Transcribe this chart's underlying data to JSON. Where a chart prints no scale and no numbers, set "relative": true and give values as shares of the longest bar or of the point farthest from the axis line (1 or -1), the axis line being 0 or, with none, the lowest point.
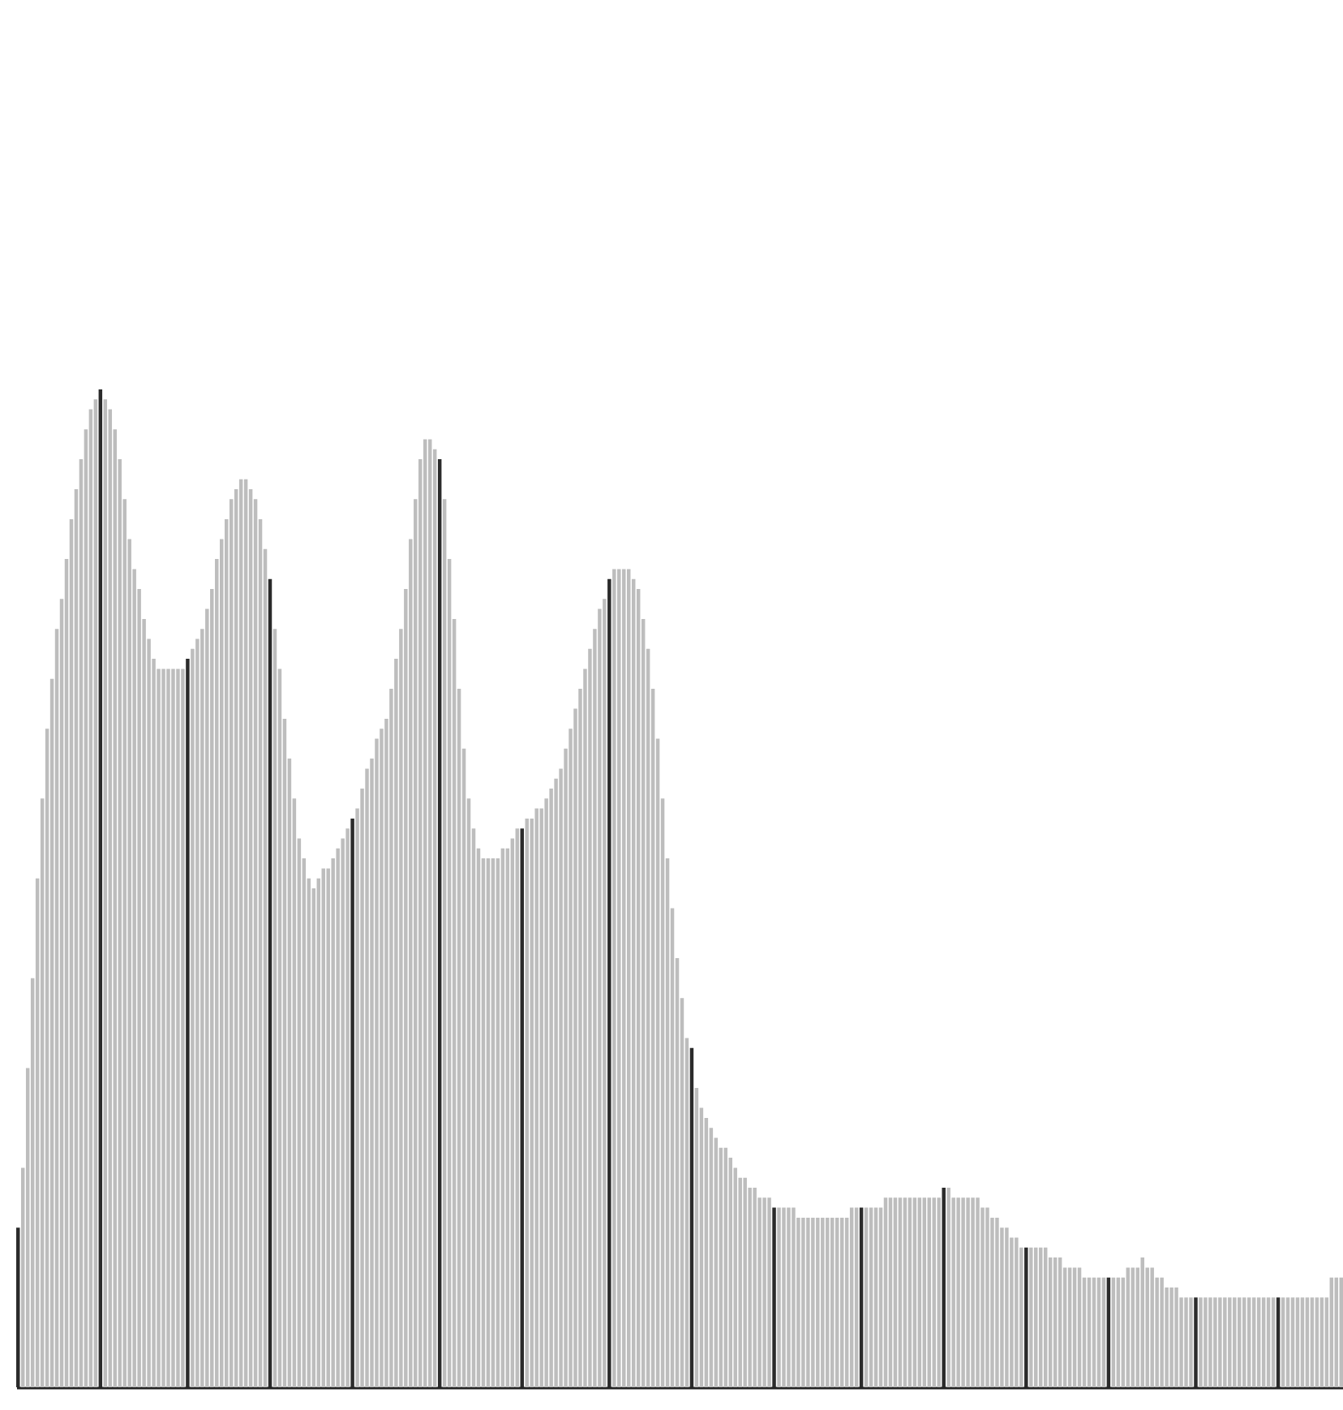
{
  "chart_data": {
    "type": "bar",
    "relative": true,
    "categories": [
      null,
      null,
      null,
      null,
      null,
      null,
      null,
      null,
      null,
      null,
      null,
      null,
      null,
      null,
      null,
      null,
      null,
      null,
      null,
      null,
      null,
      null,
      null,
      null,
      null,
      null,
      null,
      null,
      null,
      null,
      null,
      null,
      null,
      null,
      null,
      null,
      null,
      null,
      null,
      null,
      null,
      null,
      null,
      null,
      null,
      null,
      null,
      null,
      null,
      null,
      null,
      null,
      null,
      null,
      null,
      null,
      null,
      null,
      null,
      null,
      null,
      null,
      null,
      null,
      null,
      null,
      null,
      null,
      null,
      null,
      null,
      null,
      null,
      null,
      null,
      null,
      null,
      null,
      null,
      null,
      null,
      null,
      null,
      null,
      null,
      null,
      null,
      null,
      null,
      null,
      null,
      null,
      null,
      null,
      null,
      null,
      null,
      null,
      null,
      null,
      null,
      null,
      null,
      null,
      null,
      null,
      null,
      null,
      null,
      null,
      null,
      null,
      null,
      null,
      null,
      null,
      null,
      null,
      null,
      null,
      null,
      null,
      null,
      null,
      null,
      null,
      null,
      null,
      null,
      null,
      null,
      null,
      null,
      null,
      null,
      null,
      null,
      null,
      null,
      null,
      null,
      null,
      null,
      null,
      null,
      null,
      null,
      null,
      null,
      null,
      null,
      null,
      null,
      null,
      null,
      null,
      null,
      null,
      null,
      null,
      null,
      null,
      null,
      null,
      null,
      null,
      null,
      null,
      null,
      null,
      null,
      null,
      null,
      null,
      null,
      null,
      null,
      null,
      null,
      null,
      null,
      null,
      null,
      null,
      null,
      null,
      null,
      null,
      null,
      null,
      null,
      null,
      null,
      null,
      null,
      null,
      null,
      null,
      null,
      null,
      null,
      null,
      null,
      null,
      null,
      null,
      null,
      null,
      null,
      null,
      null,
      null,
      null,
      null,
      null,
      null,
      null,
      null,
      null,
      null,
      null,
      null,
      null,
      null,
      null,
      null,
      null,
      null,
      null,
      null,
      null,
      null,
      null,
      null,
      null,
      null,
      null,
      null,
      null,
      null,
      null,
      null,
      null,
      null,
      null,
      null,
      null,
      null,
      null,
      null,
      null,
      null,
      null,
      null,
      null,
      null,
      null,
      null,
      null,
      null,
      null,
      null,
      null,
      null,
      null,
      null,
      null,
      null,
      null,
      null,
      null,
      null,
      null,
      null
    ],
    "values": [
      0.16,
      0.22,
      0.32,
      0.41,
      0.51,
      0.59,
      0.66,
      0.71,
      0.76,
      0.79,
      0.83,
      0.87,
      0.9,
      0.93,
      0.96,
      0.98,
      0.99,
      1.0,
      0.99,
      0.98,
      0.96,
      0.93,
      0.89,
      0.85,
      0.82,
      0.8,
      0.77,
      0.75,
      0.73,
      0.72,
      0.72,
      0.72,
      0.72,
      0.72,
      0.72,
      0.73,
      0.74,
      0.75,
      0.76,
      0.78,
      0.8,
      0.83,
      0.85,
      0.87,
      0.89,
      0.9,
      0.91,
      0.91,
      0.9,
      0.89,
      0.87,
      0.84,
      0.81,
      0.76,
      0.72,
      0.67,
      0.63,
      0.59,
      0.55,
      0.53,
      0.51,
      0.5,
      0.51,
      0.52,
      0.52,
      0.53,
      0.54,
      0.55,
      0.56,
      0.57,
      0.58,
      0.6,
      0.62,
      0.63,
      0.65,
      0.66,
      0.67,
      0.7,
      0.73,
      0.76,
      0.8,
      0.85,
      0.89,
      0.93,
      0.95,
      0.95,
      0.94,
      0.93,
      0.89,
      0.83,
      0.77,
      0.7,
      0.64,
      0.59,
      0.56,
      0.54,
      0.53,
      0.53,
      0.53,
      0.53,
      0.54,
      0.54,
      0.55,
      0.56,
      0.56,
      0.57,
      0.57,
      0.58,
      0.58,
      0.59,
      0.6,
      0.61,
      0.62,
      0.64,
      0.66,
      0.68,
      0.7,
      0.72,
      0.74,
      0.76,
      0.78,
      0.79,
      0.81,
      0.82,
      0.82,
      0.82,
      0.82,
      0.81,
      0.8,
      0.77,
      0.74,
      0.7,
      0.65,
      0.59,
      0.53,
      0.48,
      0.43,
      0.39,
      0.35,
      0.34,
      0.3,
      0.28,
      0.27,
      0.26,
      0.25,
      0.24,
      0.24,
      0.23,
      0.22,
      0.21,
      0.21,
      0.2,
      0.2,
      0.19,
      0.19,
      0.19,
      0.18,
      0.18,
      0.18,
      0.18,
      0.18,
      0.17,
      0.17,
      0.17,
      0.17,
      0.17,
      0.17,
      0.17,
      0.17,
      0.17,
      0.17,
      0.17,
      0.18,
      0.18,
      0.18,
      0.18,
      0.18,
      0.18,
      0.18,
      0.19,
      0.19,
      0.19,
      0.19,
      0.19,
      0.19,
      0.19,
      0.19,
      0.19,
      0.19,
      0.19,
      0.19,
      0.2,
      0.2,
      0.19,
      0.19,
      0.19,
      0.19,
      0.19,
      0.19,
      0.18,
      0.18,
      0.17,
      0.17,
      0.16,
      0.16,
      0.15,
      0.15,
      0.14,
      0.14,
      0.14,
      0.14,
      0.14,
      0.14,
      0.13,
      0.13,
      0.13,
      0.12,
      0.12,
      0.12,
      0.12,
      0.11,
      0.11,
      0.11,
      0.11,
      0.11,
      0.11,
      0.11,
      0.11,
      0.11,
      0.12,
      0.12,
      0.12,
      0.13,
      0.12,
      0.12,
      0.11,
      0.11,
      0.1,
      0.1,
      0.1,
      0.09,
      0.09,
      0.09,
      0.09,
      0.09,
      0.09,
      0.09,
      0.09,
      0.09,
      0.09,
      0.09,
      0.09,
      0.09,
      0.09,
      0.09,
      0.09,
      0.09,
      0.09,
      0.09,
      0.09,
      0.09,
      0.09,
      0.09,
      0.09,
      0.09,
      0.09,
      0.09,
      0.09,
      0.09,
      0.09,
      0.09,
      0.11,
      0.11,
      0.11
    ],
    "colors": [
      "#2b2b2b",
      "#bdbdbd",
      "#bdbdbd",
      "#bdbdbd",
      "#bdbdbd",
      "#bdbdbd",
      "#bdbdbd",
      "#bdbdbd",
      "#bdbdbd",
      "#bdbdbd",
      "#bdbdbd",
      "#bdbdbd",
      "#bdbdbd",
      "#bdbdbd",
      "#bdbdbd",
      "#bdbdbd",
      "#bdbdbd",
      "#2b2b2b",
      "#bdbdbd",
      "#bdbdbd",
      "#bdbdbd",
      "#bdbdbd",
      "#bdbdbd",
      "#bdbdbd",
      "#bdbdbd",
      "#bdbdbd",
      "#bdbdbd",
      "#bdbdbd",
      "#bdbdbd",
      "#bdbdbd",
      "#bdbdbd",
      "#bdbdbd",
      "#bdbdbd",
      "#bdbdbd",
      "#bdbdbd",
      "#2b2b2b",
      "#bdbdbd",
      "#bdbdbd",
      "#bdbdbd",
      "#bdbdbd",
      "#bdbdbd",
      "#bdbdbd",
      "#bdbdbd",
      "#bdbdbd",
      "#bdbdbd",
      "#bdbdbd",
      "#bdbdbd",
      "#bdbdbd",
      "#bdbdbd",
      "#bdbdbd",
      "#bdbdbd",
      "#bdbdbd",
      "#2b2b2b",
      "#bdbdbd",
      "#bdbdbd",
      "#bdbdbd",
      "#bdbdbd",
      "#bdbdbd",
      "#bdbdbd",
      "#bdbdbd",
      "#bdbdbd",
      "#bdbdbd",
      "#bdbdbd",
      "#bdbdbd",
      "#bdbdbd",
      "#bdbdbd",
      "#bdbdbd",
      "#bdbdbd",
      "#bdbdbd",
      "#2b2b2b",
      "#bdbdbd",
      "#bdbdbd",
      "#bdbdbd",
      "#bdbdbd",
      "#bdbdbd",
      "#bdbdbd",
      "#bdbdbd",
      "#bdbdbd",
      "#bdbdbd",
      "#bdbdbd",
      "#bdbdbd",
      "#bdbdbd",
      "#bdbdbd",
      "#bdbdbd",
      "#bdbdbd",
      "#bdbdbd",
      "#bdbdbd",
      "#2b2b2b",
      "#bdbdbd",
      "#bdbdbd",
      "#bdbdbd",
      "#bdbdbd",
      "#bdbdbd",
      "#bdbdbd",
      "#bdbdbd",
      "#bdbdbd",
      "#bdbdbd",
      "#bdbdbd",
      "#bdbdbd",
      "#bdbdbd",
      "#bdbdbd",
      "#bdbdbd",
      "#bdbdbd",
      "#bdbdbd",
      "#2b2b2b",
      "#bdbdbd",
      "#bdbdbd",
      "#bdbdbd",
      "#bdbdbd",
      "#bdbdbd",
      "#bdbdbd",
      "#bdbdbd",
      "#bdbdbd",
      "#bdbdbd",
      "#bdbdbd",
      "#bdbdbd",
      "#bdbdbd",
      "#bdbdbd",
      "#bdbdbd",
      "#bdbdbd",
      "#bdbdbd",
      "#bdbdbd",
      "#2b2b2b",
      "#bdbdbd",
      "#bdbdbd",
      "#bdbdbd",
      "#bdbdbd",
      "#bdbdbd",
      "#bdbdbd",
      "#bdbdbd",
      "#bdbdbd",
      "#bdbdbd",
      "#bdbdbd",
      "#bdbdbd",
      "#bdbdbd",
      "#bdbdbd",
      "#bdbdbd",
      "#bdbdbd",
      "#bdbdbd",
      "#2b2b2b",
      "#bdbdbd",
      "#bdbdbd",
      "#bdbdbd",
      "#bdbdbd",
      "#bdbdbd",
      "#bdbdbd",
      "#bdbdbd",
      "#bdbdbd",
      "#bdbdbd",
      "#bdbdbd",
      "#bdbdbd",
      "#bdbdbd",
      "#bdbdbd",
      "#bdbdbd",
      "#bdbdbd",
      "#bdbdbd",
      "#2b2b2b",
      "#bdbdbd",
      "#bdbdbd",
      "#bdbdbd",
      "#bdbdbd",
      "#bdbdbd",
      "#bdbdbd",
      "#bdbdbd",
      "#bdbdbd",
      "#bdbdbd",
      "#bdbdbd",
      "#bdbdbd",
      "#bdbdbd",
      "#bdbdbd",
      "#bdbdbd",
      "#bdbdbd",
      "#bdbdbd",
      "#bdbdbd",
      "#2b2b2b",
      "#bdbdbd",
      "#bdbdbd",
      "#bdbdbd",
      "#bdbdbd",
      "#bdbdbd",
      "#bdbdbd",
      "#bdbdbd",
      "#bdbdbd",
      "#bdbdbd",
      "#bdbdbd",
      "#bdbdbd",
      "#bdbdbd",
      "#bdbdbd",
      "#bdbdbd",
      "#bdbdbd",
      "#bdbdbd",
      "#2b2b2b",
      "#bdbdbd",
      "#bdbdbd",
      "#bdbdbd",
      "#bdbdbd",
      "#bdbdbd",
      "#bdbdbd",
      "#bdbdbd",
      "#bdbdbd",
      "#bdbdbd",
      "#bdbdbd",
      "#bdbdbd",
      "#bdbdbd",
      "#bdbdbd",
      "#bdbdbd",
      "#bdbdbd",
      "#bdbdbd",
      "#2b2b2b",
      "#bdbdbd",
      "#bdbdbd",
      "#bdbdbd",
      "#bdbdbd",
      "#bdbdbd",
      "#bdbdbd",
      "#bdbdbd",
      "#bdbdbd",
      "#bdbdbd",
      "#bdbdbd",
      "#bdbdbd",
      "#bdbdbd",
      "#bdbdbd",
      "#bdbdbd",
      "#bdbdbd",
      "#bdbdbd",
      "#2b2b2b",
      "#bdbdbd",
      "#bdbdbd",
      "#bdbdbd",
      "#bdbdbd",
      "#bdbdbd",
      "#bdbdbd",
      "#bdbdbd",
      "#bdbdbd",
      "#bdbdbd",
      "#bdbdbd",
      "#bdbdbd",
      "#bdbdbd",
      "#bdbdbd",
      "#bdbdbd",
      "#bdbdbd",
      "#bdbdbd",
      "#bdbdbd",
      "#2b2b2b",
      "#bdbdbd",
      "#bdbdbd",
      "#bdbdbd",
      "#bdbdbd",
      "#bdbdbd",
      "#bdbdbd",
      "#bdbdbd",
      "#bdbdbd",
      "#bdbdbd",
      "#bdbdbd",
      "#bdbdbd",
      "#bdbdbd",
      "#bdbdbd",
      "#bdbdbd",
      "#bdbdbd",
      "#bdbdbd",
      "#2b2b2b",
      "#bdbdbd",
      "#bdbdbd",
      "#bdbdbd",
      "#bdbdbd",
      "#bdbdbd",
      "#bdbdbd",
      "#bdbdbd",
      "#bdbdbd",
      "#bdbdbd",
      "#bdbdbd",
      "#bdbdbd",
      "#bdbdbd",
      "#bdbdbd"
    ]
  }
}
